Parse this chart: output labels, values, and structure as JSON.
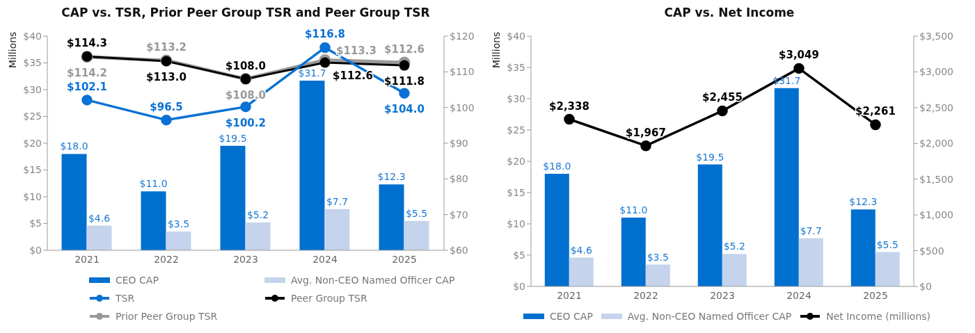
{
  "chart_data": [
    {
      "type": "bar",
      "title": "CAP vs. TSR, Prior Peer Group TSR and Peer Group TSR",
      "ylabel": "Millions",
      "categories": [
        "2021",
        "2022",
        "2023",
        "2024",
        "2025"
      ],
      "series": [
        {
          "name": "CEO CAP",
          "color": "#0070cf",
          "values": [
            18.0,
            11.0,
            19.5,
            31.7,
            12.3
          ],
          "value_labels": [
            "$18.0",
            "$11.0",
            "$19.5",
            "$31.7",
            "$12.3"
          ]
        },
        {
          "name": "Avg. Non-CEO Named Officer CAP",
          "color": "#c5d4ec",
          "values": [
            4.6,
            3.5,
            5.2,
            7.7,
            5.5
          ],
          "value_labels": [
            "$4.6",
            "$3.5",
            "$5.2",
            "$7.7",
            "$5.5"
          ]
        },
        {
          "name": "TSR",
          "type": "line",
          "axis": "y2",
          "color": "#0a72d4",
          "values": [
            102.1,
            96.5,
            100.2,
            116.8,
            104.0
          ],
          "value_labels": [
            "$102.1",
            "$96.5",
            "$100.2",
            "$116.8",
            "$104.0"
          ]
        },
        {
          "name": "Peer Group TSR",
          "type": "line",
          "axis": "y2",
          "color": "#000000",
          "values": [
            114.3,
            113.0,
            108.0,
            112.6,
            111.8
          ],
          "value_labels": [
            "$114.3",
            "$113.0",
            "$108.0",
            "$112.6",
            "$111.8"
          ]
        },
        {
          "name": "Prior Peer Group TSR",
          "type": "line",
          "axis": "y2",
          "color": "#999999",
          "values": [
            114.2,
            113.2,
            108.0,
            113.3,
            112.6
          ],
          "value_labels": [
            "$114.2",
            "$113.2",
            "$108.0",
            "$113.3",
            "$112.6"
          ]
        }
      ],
      "ylim": [
        0,
        40
      ],
      "yticks": [
        {
          "value": 0,
          "label": "$0"
        },
        {
          "value": 5,
          "label": "$5"
        },
        {
          "value": 10,
          "label": "$10"
        },
        {
          "value": 15,
          "label": "$15"
        },
        {
          "value": 20,
          "label": "$20"
        },
        {
          "value": 25,
          "label": "$25"
        },
        {
          "value": 30,
          "label": "$30"
        },
        {
          "value": 35,
          "label": "$35"
        },
        {
          "value": 40,
          "label": "$40"
        }
      ],
      "y2lim": [
        60,
        120
      ],
      "y2ticks": [
        {
          "value": 60,
          "label": "$60"
        },
        {
          "value": 70,
          "label": "$70"
        },
        {
          "value": 80,
          "label": "$80"
        },
        {
          "value": 90,
          "label": "$90"
        },
        {
          "value": 100,
          "label": "$100"
        },
        {
          "value": 110,
          "label": "$110"
        },
        {
          "value": 120,
          "label": "$120"
        }
      ],
      "marker": "circle",
      "legend": "bottom",
      "grid": false
    },
    {
      "type": "bar",
      "title": "CAP vs. Net Income",
      "ylabel": "Millions",
      "categories": [
        "2021",
        "2022",
        "2023",
        "2024",
        "2025"
      ],
      "series": [
        {
          "name": "CEO CAP",
          "color": "#0070cf",
          "values": [
            18.0,
            11.0,
            19.5,
            31.7,
            12.3
          ],
          "value_labels": [
            "$18.0",
            "$11.0",
            "$19.5",
            "$31.7",
            "$12.3"
          ]
        },
        {
          "name": "Avg. Non-CEO Named Officer CAP",
          "color": "#c5d4ec",
          "values": [
            4.6,
            3.5,
            5.2,
            7.7,
            5.5
          ],
          "value_labels": [
            "$4.6",
            "$3.5",
            "$5.2",
            "$7.7",
            "$5.5"
          ]
        },
        {
          "name": "Net Income (millions)",
          "type": "line",
          "axis": "y2",
          "color": "#000000",
          "values": [
            2338,
            1967,
            2455,
            3049,
            2261
          ],
          "value_labels": [
            "$2,338",
            "$1,967",
            "$2,455",
            "$3,049",
            "$2,261"
          ]
        }
      ],
      "ylim": [
        0,
        40
      ],
      "yticks": [
        {
          "value": 0,
          "label": "$0"
        },
        {
          "value": 5,
          "label": "$5"
        },
        {
          "value": 10,
          "label": "$10"
        },
        {
          "value": 15,
          "label": "$15"
        },
        {
          "value": 20,
          "label": "$20"
        },
        {
          "value": 25,
          "label": "$25"
        },
        {
          "value": 30,
          "label": "$30"
        },
        {
          "value": 35,
          "label": "$35"
        },
        {
          "value": 40,
          "label": "$40"
        }
      ],
      "y2lim": [
        0,
        3500
      ],
      "y2ticks": [
        {
          "value": 0,
          "label": "$0"
        },
        {
          "value": 500,
          "label": "$500"
        },
        {
          "value": 1000,
          "label": "$1,000"
        },
        {
          "value": 1500,
          "label": "$1,500"
        },
        {
          "value": 2000,
          "label": "$2,000"
        },
        {
          "value": 2500,
          "label": "$2,500"
        },
        {
          "value": 3000,
          "label": "$3,000"
        },
        {
          "value": 3500,
          "label": "$3,500"
        }
      ],
      "marker": "circle",
      "legend": "bottom",
      "grid": false
    }
  ]
}
